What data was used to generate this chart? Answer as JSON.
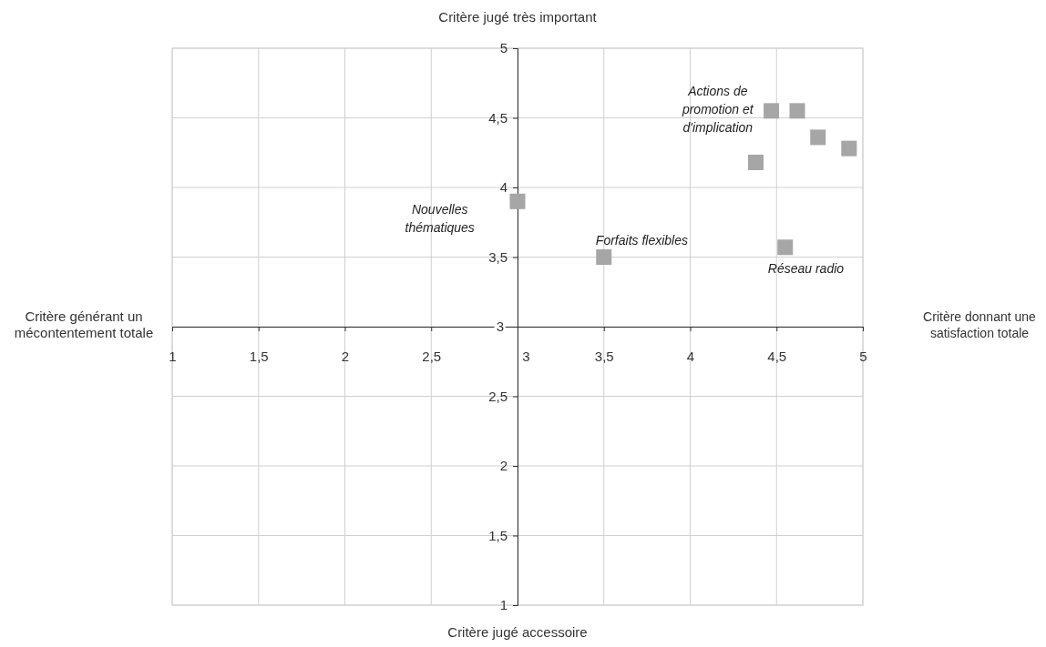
{
  "chart_data": {
    "type": "scatter",
    "xlabel": "Critère donnant une satisfaction totale",
    "ylabel": "Critère jugé très important",
    "x": [
      3.0,
      3.5,
      4.38,
      4.47,
      4.62,
      4.74,
      4.92,
      4.55
    ],
    "series": [
      {
        "color": "#a6a6a6",
        "values": [
          3.9,
          3.5,
          4.18,
          4.55,
          4.55,
          4.36,
          4.28,
          3.57
        ]
      }
    ],
    "marker": "square",
    "xlim": [
      1,
      5
    ],
    "ylim": [
      1,
      5
    ],
    "xticks": [
      1,
      {
        "value": 1.5,
        "label": "1,5"
      },
      2,
      {
        "value": 2.5,
        "label": "2,5"
      },
      3,
      {
        "value": 3.5,
        "label": "3,5"
      },
      4,
      {
        "value": 4.5,
        "label": "4,5"
      },
      5
    ],
    "yticks": [
      1,
      {
        "value": 1.5,
        "label": "1,5"
      },
      2,
      {
        "value": 2.5,
        "label": "2,5"
      },
      3,
      {
        "value": 3.5,
        "label": "3,5"
      },
      4,
      {
        "value": 4.5,
        "label": "4,5"
      },
      5
    ],
    "grid": true,
    "annotations": [
      "Critère jugé accessoire",
      "Critère générant un mécontentement totale",
      "Nouvelles thématiques",
      "Forfaits flexibles",
      "Actions de promotion et d'implication",
      "Réseau radio"
    ]
  }
}
